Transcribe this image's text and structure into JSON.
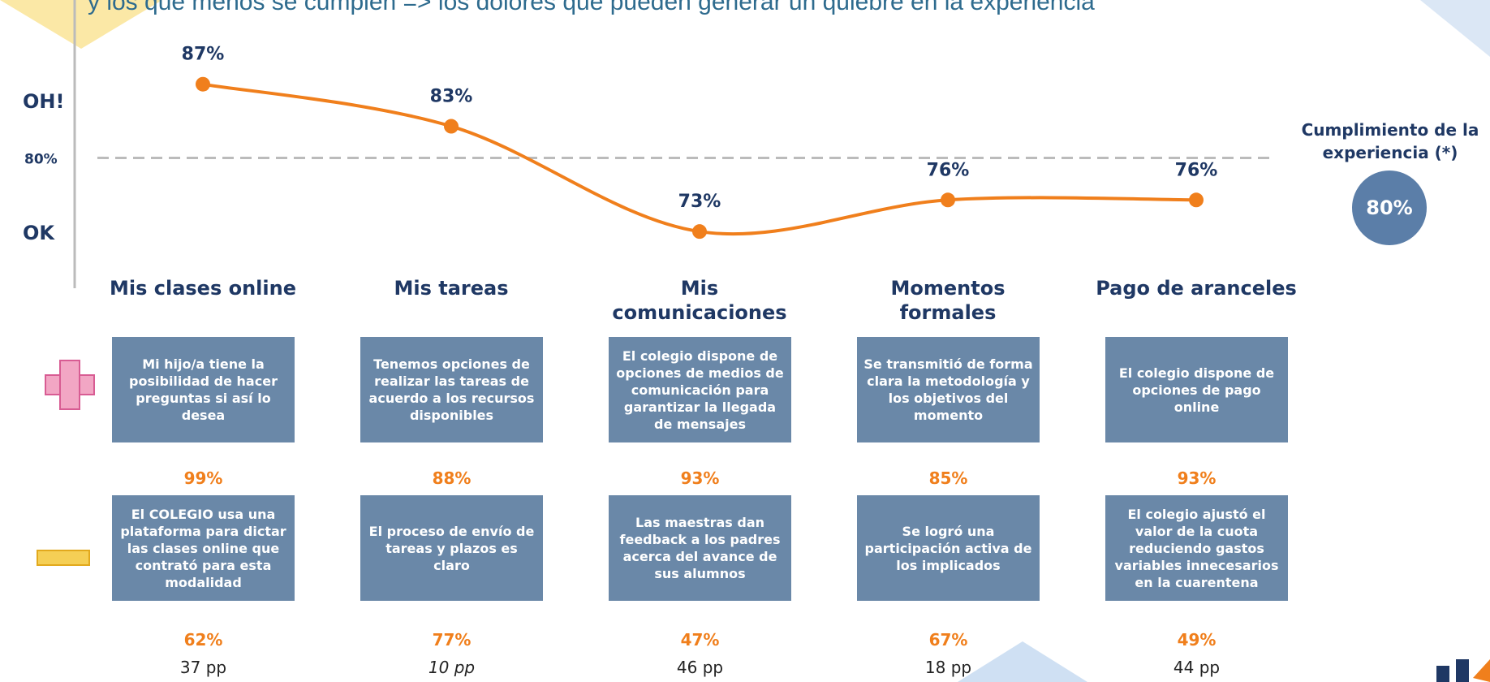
{
  "chart_data": {
    "type": "line",
    "title": "y los que menos se cumplen =>  los dolores que pueden generar un quiebre en la experiencia",
    "categories": [
      "Mis clases online",
      "Mis tareas",
      "Mis comunicaciones",
      "Momentos formales",
      "Pago de aranceles"
    ],
    "values": [
      87,
      83,
      73,
      76,
      76
    ],
    "value_labels": [
      "87%",
      "83%",
      "73%",
      "76%",
      "76%"
    ],
    "color": "#f07f1c",
    "ylim": [
      68,
      95
    ],
    "reference": {
      "value": 80,
      "label": "80%"
    },
    "annotations": [
      "OH!",
      "OK"
    ]
  },
  "columns": [
    {
      "positive": {
        "text": "Mi hijo/a tiene la posibilidad de hacer preguntas si así lo desea",
        "value": 99,
        "label": "99%"
      },
      "negative": {
        "text": "El COLEGIO usa una plataforma para dictar las clases online que contrató para esta modalidad",
        "value": 62,
        "label": "62%"
      },
      "difference": {
        "value": 37,
        "label": "37 pp"
      }
    },
    {
      "positive": {
        "text": "Tenemos opciones de realizar las tareas de acuerdo a los recursos disponibles",
        "value": 88,
        "label": "88%"
      },
      "negative": {
        "text": "El proceso de envío de tareas y plazos es claro",
        "value": 77,
        "label": "77%"
      },
      "difference": {
        "value": 10,
        "label": "10 pp"
      }
    },
    {
      "positive": {
        "text": "El  colegio dispone de opciones de medios de comunicación para garantizar la llegada de mensajes",
        "value": 93,
        "label": "93%"
      },
      "negative": {
        "text": "Las maestras dan feedback a los padres acerca del avance de sus alumnos",
        "value": 47,
        "label": "47%"
      },
      "difference": {
        "value": 46,
        "label": "46 pp"
      }
    },
    {
      "positive": {
        "text": "Se transmitió de forma clara la metodología y los objetivos del momento",
        "value": 85,
        "label": "85%"
      },
      "negative": {
        "text": "Se logró una participación activa de los implicados",
        "value": 67,
        "label": "67%"
      },
      "difference": {
        "value": 18,
        "label": "18 pp"
      }
    },
    {
      "positive": {
        "text": "El colegio dispone de opciones de pago online",
        "value": 93,
        "label": "93%"
      },
      "negative": {
        "text": "El colegio ajustó el valor de la cuota reduciendo gastos variables innecesarios en la cuarentena",
        "value": 49,
        "label": "49%"
      },
      "difference": {
        "value": 44,
        "label": "44 pp"
      }
    }
  ],
  "summary": {
    "label": "Cumplimiento de la experiencia (*)",
    "value": 80,
    "value_label": "80%"
  }
}
